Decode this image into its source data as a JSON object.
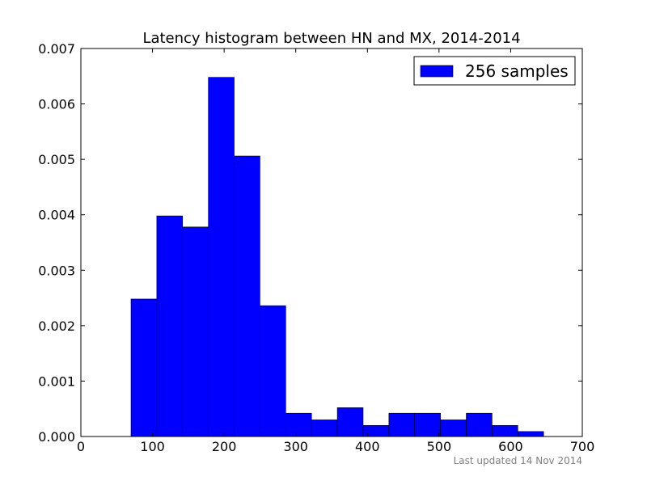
{
  "chart_data": {
    "type": "bar",
    "title": "Latency histogram between HN and MX, 2014-2014",
    "xlabel": "",
    "ylabel": "",
    "xlim": [
      0,
      700
    ],
    "ylim": [
      0,
      0.007
    ],
    "xticks": [
      0,
      100,
      200,
      300,
      400,
      500,
      600,
      700
    ],
    "xtick_labels": [
      "0",
      "100",
      "200",
      "300",
      "400",
      "500",
      "600",
      "700"
    ],
    "yticks": [
      0,
      0.001,
      0.002,
      0.003,
      0.004,
      0.005,
      0.006,
      0.007
    ],
    "ytick_labels": [
      "0.000",
      "0.001",
      "0.002",
      "0.003",
      "0.004",
      "0.005",
      "0.006",
      "0.007"
    ],
    "grid": false,
    "legend": {
      "position": "top-right",
      "entries": [
        "256 samples"
      ]
    },
    "series": [
      {
        "name": "256 samples",
        "color": "#0000ff",
        "bin_edges": [
          70,
          106,
          142,
          178,
          214,
          250,
          286,
          322,
          358,
          394,
          430,
          466,
          502,
          538,
          574,
          610,
          646
        ],
        "values": [
          0.00248,
          0.00398,
          0.00378,
          0.00648,
          0.00506,
          0.00236,
          0.00042,
          0.0003,
          0.00052,
          0.0002,
          0.00042,
          0.00042,
          0.0003,
          0.00042,
          0.0002,
          9e-05
        ]
      }
    ]
  },
  "footer": "Last updated 14 Nov 2014"
}
